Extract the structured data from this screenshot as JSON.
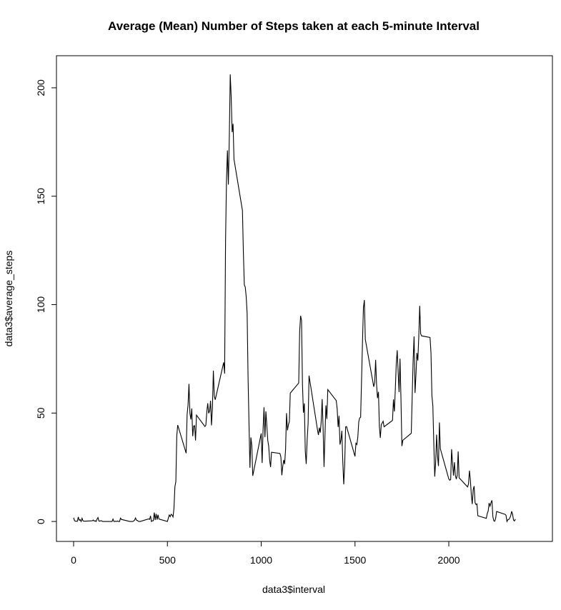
{
  "chart_data": {
    "type": "line",
    "title": "Average (Mean) Number of Steps taken at each 5-minute Interval",
    "x_label": "data3$interval",
    "y_label": "data3$average_steps",
    "x": [
      0,
      5,
      10,
      15,
      20,
      25,
      30,
      35,
      40,
      45,
      50,
      55,
      100,
      105,
      110,
      115,
      120,
      125,
      130,
      135,
      140,
      145,
      150,
      155,
      200,
      205,
      210,
      215,
      220,
      225,
      230,
      235,
      240,
      245,
      250,
      255,
      300,
      305,
      310,
      315,
      320,
      325,
      330,
      335,
      340,
      345,
      350,
      355,
      400,
      405,
      410,
      415,
      420,
      425,
      430,
      435,
      440,
      445,
      450,
      455,
      500,
      505,
      510,
      515,
      520,
      525,
      530,
      535,
      540,
      545,
      550,
      555,
      600,
      605,
      610,
      615,
      620,
      625,
      630,
      635,
      640,
      645,
      650,
      655,
      700,
      705,
      710,
      715,
      720,
      725,
      730,
      735,
      740,
      745,
      750,
      755,
      800,
      805,
      810,
      815,
      820,
      825,
      830,
      835,
      840,
      845,
      850,
      855,
      900,
      905,
      910,
      915,
      920,
      925,
      930,
      935,
      940,
      945,
      950,
      955,
      1000,
      1005,
      1010,
      1015,
      1020,
      1025,
      1030,
      1035,
      1040,
      1045,
      1050,
      1055,
      1100,
      1105,
      1110,
      1115,
      1120,
      1125,
      1130,
      1135,
      1140,
      1145,
      1150,
      1155,
      1200,
      1205,
      1210,
      1215,
      1220,
      1225,
      1230,
      1235,
      1240,
      1245,
      1250,
      1255,
      1300,
      1305,
      1310,
      1315,
      1320,
      1325,
      1330,
      1335,
      1340,
      1345,
      1350,
      1355,
      1400,
      1405,
      1410,
      1415,
      1420,
      1425,
      1430,
      1435,
      1440,
      1445,
      1450,
      1455,
      1500,
      1505,
      1510,
      1515,
      1520,
      1525,
      1530,
      1535,
      1540,
      1545,
      1550,
      1555,
      1600,
      1605,
      1610,
      1615,
      1620,
      1625,
      1630,
      1635,
      1640,
      1645,
      1650,
      1655,
      1700,
      1705,
      1710,
      1715,
      1720,
      1725,
      1730,
      1735,
      1740,
      1745,
      1750,
      1755,
      1800,
      1805,
      1810,
      1815,
      1820,
      1825,
      1830,
      1835,
      1840,
      1845,
      1850,
      1855,
      1900,
      1905,
      1910,
      1915,
      1920,
      1925,
      1930,
      1935,
      1940,
      1945,
      1950,
      1955,
      2000,
      2005,
      2010,
      2015,
      2020,
      2025,
      2030,
      2035,
      2040,
      2045,
      2050,
      2055,
      2100,
      2105,
      2110,
      2115,
      2120,
      2125,
      2130,
      2135,
      2140,
      2145,
      2150,
      2155,
      2200,
      2205,
      2210,
      2215,
      2220,
      2225,
      2230,
      2235,
      2240,
      2245,
      2250,
      2255,
      2300,
      2305,
      2310,
      2315,
      2320,
      2325,
      2330,
      2335,
      2340,
      2345,
      2350,
      2355
    ],
    "series": [
      {
        "color": "#000000",
        "values": [
          1.72,
          0.34,
          0.13,
          0.15,
          0.08,
          2.09,
          0.53,
          0.87,
          0,
          1.47,
          0.3,
          0.13,
          0.32,
          0.68,
          0.15,
          0.34,
          0,
          1.11,
          1.83,
          0.17,
          0.17,
          0.38,
          0.26,
          0,
          0,
          0,
          1.13,
          0,
          0,
          0.13,
          0,
          0.23,
          0,
          0,
          1.55,
          0.94,
          0,
          0,
          0,
          0,
          0.21,
          0.62,
          1.62,
          0.58,
          0.49,
          0.08,
          0,
          0,
          1.19,
          0.94,
          2.57,
          0,
          0.34,
          0.36,
          4.11,
          0.66,
          3.49,
          0.83,
          3.11,
          1.11,
          0,
          1.57,
          3.0,
          2.25,
          3.32,
          2.96,
          2.09,
          6.06,
          16.02,
          18.34,
          39.45,
          44.49,
          31.49,
          49.26,
          53.77,
          63.45,
          49.96,
          47.08,
          52.15,
          39.34,
          44.02,
          44.17,
          37.36,
          49.04,
          43.81,
          44.38,
          50.51,
          54.51,
          49.92,
          50.98,
          55.68,
          44.32,
          52.26,
          69.55,
          57.85,
          56.15,
          73.38,
          68.21,
          129.43,
          157.53,
          171.15,
          155.4,
          177.3,
          206.17,
          195.92,
          179.57,
          183.4,
          167.02,
          143.45,
          124.04,
          109.11,
          108.11,
          103.72,
          95.96,
          66.21,
          45.23,
          24.79,
          38.75,
          34.98,
          21.06,
          40.57,
          26.98,
          42.42,
          52.66,
          38.92,
          50.79,
          44.28,
          37.42,
          34.7,
          28.34,
          25.09,
          31.94,
          31.36,
          29.68,
          21.32,
          25.55,
          28.38,
          26.47,
          33.43,
          49.98,
          42.04,
          44.6,
          46.04,
          59.19,
          63.87,
          87.7,
          94.85,
          92.77,
          63.4,
          50.17,
          54.47,
          32.42,
          26.53,
          37.74,
          45.06,
          67.28,
          42.34,
          39.89,
          43.26,
          40.98,
          46.25,
          56.43,
          42.75,
          25.13,
          39.96,
          53.55,
          47.32,
          60.81,
          55.75,
          51.96,
          43.58,
          48.7,
          35.47,
          37.55,
          41.85,
          27.51,
          17.11,
          26.08,
          43.62,
          43.77,
          30.02,
          36.08,
          35.49,
          38.85,
          45.96,
          47.75,
          48.13,
          65.32,
          82.91,
          98.66,
          102.11,
          83.96,
          62.13,
          64.13,
          74.55,
          63.17,
          56.91,
          59.77,
          43.87,
          38.57,
          44.66,
          45.45,
          46.21,
          43.68,
          46.62,
          56.3,
          50.72,
          61.23,
          72.72,
          78.94,
          68.94,
          59.66,
          75.09,
          56.51,
          34.77,
          37.45,
          40.68,
          58.02,
          74.7,
          85.32,
          59.26,
          67.77,
          77.7,
          74.25,
          85.34,
          99.45,
          86.58,
          85.6,
          84.87,
          77.83,
          58.04,
          53.36,
          36.33,
          20.72,
          27.4,
          40.02,
          30.21,
          25.55,
          45.66,
          33.53,
          19.62,
          19.02,
          19.34,
          33.34,
          26.81,
          21.17,
          27.3,
          21.34,
          19.55,
          21.32,
          32.3,
          20.15,
          15.94,
          17.23,
          23.45,
          19.25,
          12.45,
          8.02,
          14.66,
          16.3,
          8.68,
          7.79,
          8.13,
          2.62,
          1.45,
          3.68,
          4.81,
          8.51,
          7.08,
          8.7,
          9.75,
          2.21,
          0.32,
          0.11,
          1.6,
          4.6,
          3.3,
          2.85,
          0,
          0.83,
          0.96,
          1.58,
          2.6,
          4.7,
          3.3,
          0.64,
          0.23,
          1.08
        ]
      }
    ],
    "xlim": [
      -91.4,
      2552.4
    ],
    "ylim": [
      -9.2,
      214.8
    ],
    "xticks": [
      0,
      500,
      1000,
      1500,
      2000
    ],
    "yticks": [
      0,
      50,
      100,
      150,
      200
    ]
  }
}
